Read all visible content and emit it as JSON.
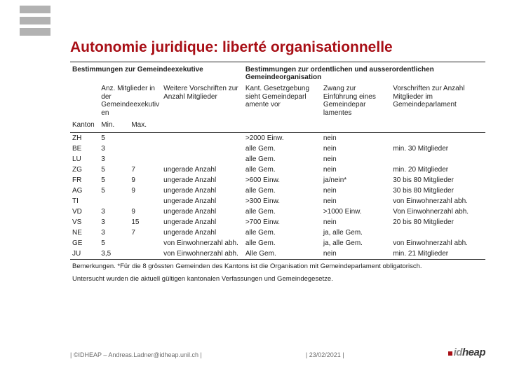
{
  "accent_color": "#a80f16",
  "logo_bar_color": "#b2b2b2",
  "title": "Autonomie juridique: liberté organisationnelle",
  "group_headers": {
    "left": "Bestimmungen zur Gemeindeexekutive",
    "right": "Bestimmungen zur ordentlichen und ausserordentlichen Gemeindeorganisation"
  },
  "col_headers": {
    "kanton": "Kanton",
    "members": "Anz. Mitglieder in der Gemeindeexekutiv en",
    "min": "Min.",
    "max": "Max.",
    "weitere": "Weitere Vorschriften zur Anzahl Mitglieder",
    "kantges": "Kant. Gesetzgebung sieht Gemeindeparl amente vor",
    "zwang": "Zwang zur Einführung eines Gemeindepar lamentes",
    "vorschr": "Vorschriften zur Anzahl Mitglieder im Gemeindeparlament"
  },
  "rows": [
    {
      "k": "ZH",
      "min": "5",
      "max": "",
      "w": "",
      "g": ">2000 Einw.",
      "z": "nein",
      "v": ""
    },
    {
      "k": "BE",
      "min": "3",
      "max": "",
      "w": "",
      "g": "alle Gem.",
      "z": "nein",
      "v": "min. 30 Mitglieder"
    },
    {
      "k": "LU",
      "min": "3",
      "max": "",
      "w": "",
      "g": "alle Gem.",
      "z": "nein",
      "v": ""
    },
    {
      "k": "ZG",
      "min": "5",
      "max": "7",
      "w": "ungerade Anzahl",
      "g": "alle Gem.",
      "z": "nein",
      "v": "min. 20 Mitglieder"
    },
    {
      "k": "FR",
      "min": "5",
      "max": "9",
      "w": "ungerade Anzahl",
      "g": ">600 Einw.",
      "z": "ja/nein*",
      "v": "30 bis 80 Mitglieder"
    },
    {
      "k": "AG",
      "min": "5",
      "max": "9",
      "w": "ungerade Anzahl",
      "g": "alle Gem.",
      "z": "nein",
      "v": "30 bis 80 Mitglieder"
    },
    {
      "k": "TI",
      "min": "",
      "max": "",
      "w": "ungerade Anzahl",
      "g": ">300 Einw.",
      "z": "nein",
      "v": "von Einwohnerzahl abh."
    },
    {
      "k": "VD",
      "min": "3",
      "max": "9",
      "w": "ungerade Anzahl",
      "g": "alle Gem.",
      "z": ">1000 Einw.",
      "v": "Von Einwohnerzahl abh."
    },
    {
      "k": "VS",
      "min": "3",
      "max": "15",
      "w": "ungerade Anzahl",
      "g": ">700 Einw.",
      "z": "nein",
      "v": "20 bis 80 Mitglieder"
    },
    {
      "k": "NE",
      "min": "3",
      "max": "7",
      "w": "ungerade Anzahl",
      "g": "alle Gem.",
      "z": "ja, alle Gem.",
      "v": ""
    },
    {
      "k": "GE",
      "min": "5",
      "max": "",
      "w": "von Einwohnerzahl abh.",
      "g": "alle Gem.",
      "z": "ja, alle Gem.",
      "v": "von Einwohnerzahl abh."
    },
    {
      "k": "JU",
      "min": "3,5",
      "max": "",
      "w": "von Einwohnerzahl abh.",
      "g": "Alle Gem.",
      "z": "nein",
      "v": "min. 21 Mitglieder"
    }
  ],
  "note1": "Bemerkungen. *Für die 8 grössten Gemeinden des Kantons ist die Organisation mit Gemeindeparlament obligatorisch.",
  "note2": "Untersucht wurden die aktuell gültigen kantonalen Verfassungen und Gemeindegesetze.",
  "footer_left": "| ©IDHEAP – Andreas.Ladner@idheap.unil.ch |",
  "footer_date": "| 23/02/2021 |",
  "idheap_text_id": "id",
  "idheap_text_heap": "heap"
}
